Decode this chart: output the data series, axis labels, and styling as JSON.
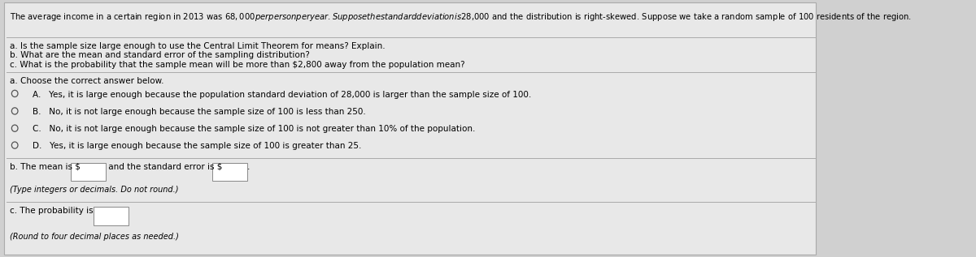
{
  "bg_color": "#d0d0d0",
  "panel_color": "#e8e8e8",
  "border_color": "#aaaaaa",
  "text_color": "#000000",
  "title_text": "The average income in a certain region in 2013 was $68,000 per person per year. Suppose the standard deviation is $28,000 and the distribution is right-skewed. Suppose we take a random sample of 100 residents of the region.",
  "questions": [
    "a. Is the sample size large enough to use the Central Limit Theorem for means? Explain.",
    "b. What are the mean and standard error of the sampling distribution?",
    "c. What is the probability that the sample mean will be more than $2,800 away from the population mean?"
  ],
  "section_a_header": "a. Choose the correct answer below.",
  "choices": [
    "A.   Yes, it is large enough because the population standard deviation of 28,000 is larger than the sample size of 100.",
    "B.   No, it is not large enough because the sample size of 100 is less than 250.",
    "C.   No, it is not large enough because the sample size of 100 is not greater than 10% of the population.",
    "D.   Yes, it is large enough because the sample size of 100 is greater than 25."
  ],
  "section_b_text1": "b. The mean is $",
  "section_b_text2": " and the standard error is $",
  "section_b_text3": ".",
  "section_b_note": "(Type integers or decimals. Do not round.)",
  "section_c_text": "c. The probability is ",
  "section_c_note": "(Round to four decimal places as needed.)",
  "fs_title": 7.2,
  "fs_body": 7.5,
  "fs_small": 7.0,
  "separator_color": "#aaaaaa",
  "separator_lw": 0.7,
  "circle_color": "#555555",
  "box_edge_color": "#888888"
}
